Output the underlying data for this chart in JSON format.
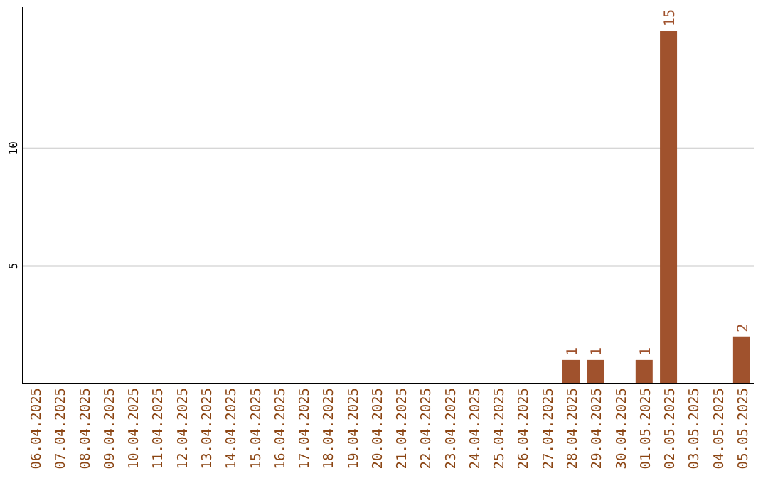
{
  "chart_data": {
    "type": "bar",
    "categories": [
      "06.04.2025",
      "07.04.2025",
      "08.04.2025",
      "09.04.2025",
      "10.04.2025",
      "11.04.2025",
      "12.04.2025",
      "13.04.2025",
      "14.04.2025",
      "15.04.2025",
      "16.04.2025",
      "17.04.2025",
      "18.04.2025",
      "19.04.2025",
      "20.04.2025",
      "21.04.2025",
      "22.04.2025",
      "23.04.2025",
      "24.04.2025",
      "25.04.2025",
      "26.04.2025",
      "27.04.2025",
      "28.04.2025",
      "29.04.2025",
      "30.04.2025",
      "01.05.2025",
      "02.05.2025",
      "03.05.2025",
      "04.05.2025",
      "05.05.2025"
    ],
    "values": [
      0,
      0,
      0,
      0,
      0,
      0,
      0,
      0,
      0,
      0,
      0,
      0,
      0,
      0,
      0,
      0,
      0,
      0,
      0,
      0,
      0,
      0,
      1,
      1,
      0,
      1,
      15,
      0,
      0,
      2
    ],
    "value_labels": [
      null,
      null,
      null,
      null,
      null,
      null,
      null,
      null,
      null,
      null,
      null,
      null,
      null,
      null,
      null,
      null,
      null,
      null,
      null,
      null,
      null,
      null,
      "1",
      "1",
      null,
      "1",
      "15",
      null,
      null,
      "2"
    ],
    "color": "#a0522d",
    "ylim": [
      0,
      16
    ],
    "yticks": [
      5,
      10
    ],
    "grid": "y",
    "legend": false
  }
}
